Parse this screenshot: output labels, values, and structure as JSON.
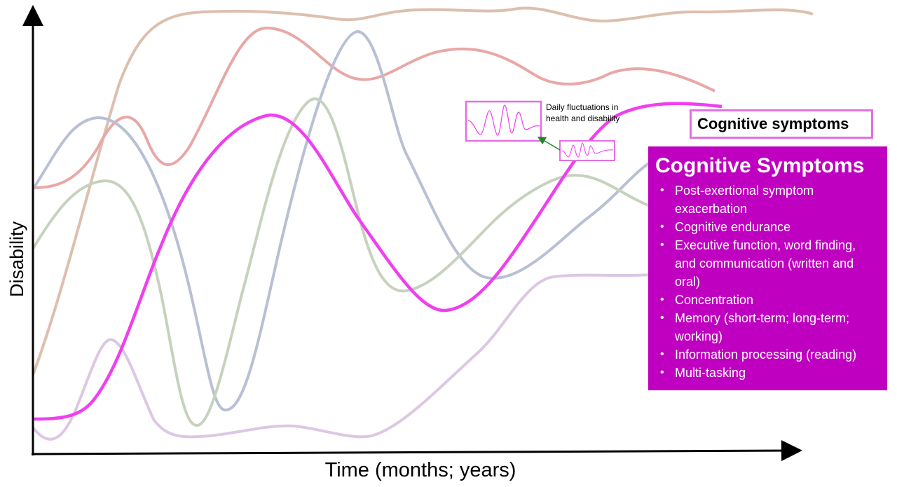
{
  "axes": {
    "y_label": "Disability",
    "x_label": "Time (months; years)"
  },
  "colors": {
    "highlight_line": "#f03ef0",
    "trace_red": "#e8a8a6",
    "trace_brown": "#ddbfae",
    "trace_blue": "#b9bfd4",
    "trace_green": "#c7d2be",
    "trace_purple": "#dcc7e4",
    "panel_bg": "#c000c0",
    "box_border": "#e36fe3",
    "arrow": "#228822"
  },
  "inset_note": "Daily fluctuations in health and disability",
  "tag_label": "Cognitive symptoms",
  "panel": {
    "title": "Cognitive Symptoms",
    "items": [
      "Post-exertional symptom exacerbation",
      "Cognitive endurance",
      "Executive function, word finding, and communication (written and oral)",
      "Concentration",
      "Memory (short-term; long-term; working)",
      "Information processing (reading)",
      "Multi-tasking"
    ]
  }
}
